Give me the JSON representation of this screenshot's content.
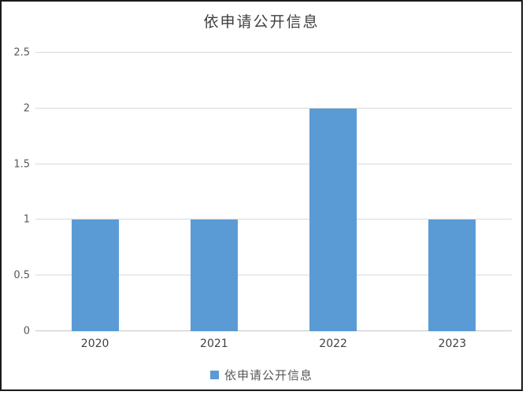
{
  "title": "依申请公开信息",
  "legend": {
    "label": "依申请公开信息",
    "swatch_color": "#5B9BD5"
  },
  "chart_data": {
    "type": "bar",
    "title": "依申请公开信息",
    "categories": [
      "2020",
      "2021",
      "2022",
      "2023"
    ],
    "series": [
      {
        "name": "依申请公开信息",
        "values": [
          1,
          1,
          2,
          1
        ],
        "color": "#5B9BD5"
      }
    ],
    "xlabel": "",
    "ylabel": "",
    "ylim": [
      0,
      2.5
    ],
    "yticks": [
      0,
      0.5,
      1,
      1.5,
      2,
      2.5
    ],
    "ytick_labels": [
      "0",
      "0.5",
      "1",
      "1.5",
      "2",
      "2.5"
    ],
    "grid": true,
    "gridline_color": "#d9d9d9",
    "axis_line_color": "#c6c4c4",
    "tick_label_color": "#595959",
    "legend_position": "bottom"
  }
}
